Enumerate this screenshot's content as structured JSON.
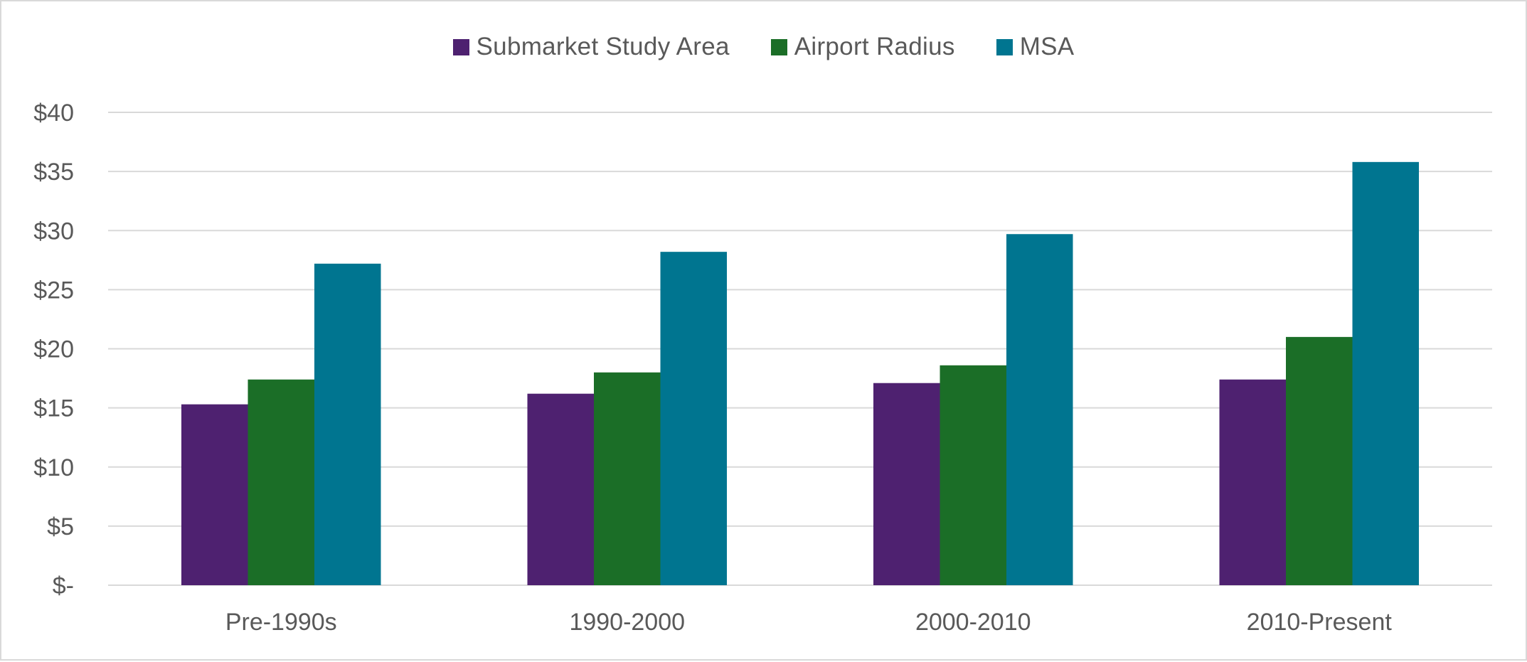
{
  "chart_data": {
    "type": "bar",
    "title": "",
    "xlabel": "",
    "ylabel": "",
    "categories": [
      "Pre-1990s",
      "1990-2000",
      "2000-2010",
      "2010-Present"
    ],
    "series": [
      {
        "name": "Submarket Study Area",
        "color": "#4e2170",
        "values": [
          15.3,
          16.2,
          17.1,
          17.4
        ]
      },
      {
        "name": "Airport Radius",
        "color": "#1b6e27",
        "values": [
          17.4,
          18.0,
          18.6,
          21.0
        ]
      },
      {
        "name": "MSA",
        "color": "#007590",
        "values": [
          27.2,
          28.2,
          29.7,
          35.8
        ]
      }
    ],
    "ylim": [
      0,
      40
    ],
    "yticks": [
      0,
      5,
      10,
      15,
      20,
      25,
      30,
      35,
      40
    ],
    "ytick_labels": [
      "$-",
      "$5",
      "$10",
      "$15",
      "$20",
      "$25",
      "$30",
      "$35",
      "$40"
    ],
    "grid": true,
    "legend_position": "top-center",
    "gridline_color": "#d9d9d9"
  }
}
